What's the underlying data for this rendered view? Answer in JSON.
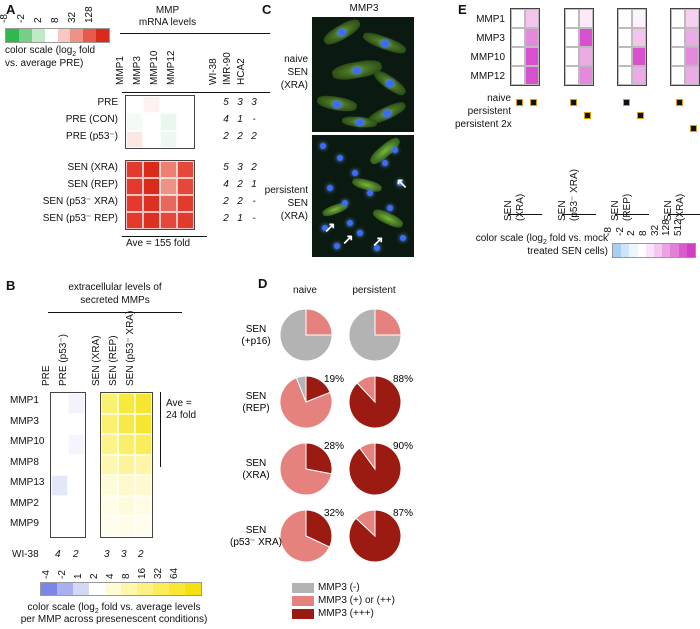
{
  "panels": {
    "A": {
      "letter": "A",
      "scale_ticks": [
        "-8",
        "-2",
        "2",
        "8",
        "32",
        "128"
      ],
      "scale_colors": [
        "#2eb84e",
        "#76cf85",
        "#c0e9c6",
        "#ffffff",
        "#f7c9c2",
        "#ef9286",
        "#e65a4a",
        "#d92a1c"
      ],
      "scale_caption_1": "color scale (log",
      "scale_caption_sub": "2",
      "scale_caption_2": " fold",
      "scale_caption_3": "vs. average PRE)",
      "header_1": "MMP",
      "header_2": "mRNA levels",
      "columns": [
        "MMP1",
        "MMP3",
        "MMP10",
        "MMP12"
      ],
      "cell_columns": [
        "WI-38",
        "IMR-90",
        "HCA2"
      ],
      "pre_rows": [
        {
          "label": "PRE",
          "counts": [
            "5",
            "3",
            "3"
          ],
          "colors": [
            "#ffffff",
            "#fdf2f0",
            "#ffffff",
            "#ffffff"
          ]
        },
        {
          "label": "PRE (CON)",
          "counts": [
            "4",
            "1",
            "-"
          ],
          "colors": [
            "#f4fbf5",
            "#ffffff",
            "#e9f7ec",
            "#ffffff"
          ]
        },
        {
          "label": "PRE (p53⁻)",
          "counts": [
            "2",
            "2",
            "2"
          ],
          "colors": [
            "#fbe8e5",
            "#ffffff",
            "#eef8f0",
            "#ffffff"
          ]
        }
      ],
      "sen_rows": [
        {
          "label": "SEN (XRA)",
          "counts": [
            "5",
            "3",
            "2"
          ],
          "colors": [
            "#e23a2c",
            "#d92a1c",
            "#ee8073",
            "#e5483a"
          ]
        },
        {
          "label": "SEN (REP)",
          "counts": [
            "4",
            "2",
            "1"
          ],
          "colors": [
            "#e23a2c",
            "#d92a1c",
            "#ef9286",
            "#e5483a"
          ]
        },
        {
          "label": "SEN (p53⁻ XRA)",
          "counts": [
            "2",
            "2",
            "-"
          ],
          "colors": [
            "#e23a2c",
            "#dd3022",
            "#e8695b",
            "#e23a2c"
          ]
        },
        {
          "label": "SEN (p53⁻ REP)",
          "counts": [
            "2",
            "1",
            "-"
          ],
          "colors": [
            "#e23a2c",
            "#dd3022",
            "#e5483a",
            "#e23a2c"
          ]
        }
      ],
      "ave_label": "Ave = 155 fold"
    },
    "B": {
      "letter": "B",
      "title_1": "extracellular levels of",
      "title_2": "secreted MMPs",
      "pre_columns": [
        "PRE",
        "PRE (p53⁻)"
      ],
      "sen_columns": [
        "SEN (XRA)",
        "SEN (REP)",
        "SEN (p53⁻ XRA)"
      ],
      "rows": [
        "MMP1",
        "MMP3",
        "MMP10",
        "MMP8",
        "MMP13",
        "MMP2",
        "MMP9"
      ],
      "pre_colors": [
        [
          "#ffffff",
          "#f2f3fd"
        ],
        [
          "#ffffff",
          "#ffffff"
        ],
        [
          "#ffffff",
          "#f5f5fd"
        ],
        [
          "#ffffff",
          "#ffffff"
        ],
        [
          "#e4e7fa",
          "#ffffff"
        ],
        [
          "#ffffff",
          "#ffffff"
        ],
        [
          "#ffffff",
          "#ffffff"
        ]
      ],
      "sen_colors": [
        [
          "#fbf170",
          "#f8ea3c",
          "#f6e631"
        ],
        [
          "#fbf170",
          "#f7e94a",
          "#f6e631"
        ],
        [
          "#fcf38a",
          "#faef6a",
          "#f9ed5c"
        ],
        [
          "#fdf7b0",
          "#fcf49c",
          "#fdf6a8"
        ],
        [
          "#fefbd8",
          "#fef9cc",
          "#fefacf"
        ],
        [
          "#fffde8",
          "#fefbdc",
          "#fefce2"
        ],
        [
          "#fffdee",
          "#fffce8",
          "#fffdee"
        ]
      ],
      "ave_1": "Ave =",
      "ave_2": "24 fold",
      "wi38_label": "WI-38",
      "wi38_counts": [
        "4",
        "2",
        "3",
        "3",
        "2"
      ],
      "scale_ticks": [
        "-4",
        "-2",
        "1",
        "2",
        "4",
        "8",
        "16",
        "32",
        "64"
      ],
      "scale_colors": [
        "#7b86e8",
        "#a9b0ef",
        "#d4d8f7",
        "#ffffff",
        "#fffbd5",
        "#fef6ab",
        "#fdf183",
        "#fbec5a",
        "#f9e635",
        "#f6e010"
      ],
      "caption_1": "color scale (log",
      "caption_sub": "2",
      "caption_2": " fold vs. average levels",
      "caption_3": "per MMP across presenescent conditions)"
    },
    "C": {
      "letter": "C",
      "title": "MMP3",
      "label_top": [
        "naive",
        "SEN",
        "(XRA)"
      ],
      "label_bottom": [
        "persistent",
        "SEN",
        "(XRA)"
      ]
    },
    "D": {
      "letter": "D",
      "col_naive": "naive",
      "col_persistent": "persistent",
      "rows": [
        {
          "label": [
            "SEN",
            "(+p16)"
          ],
          "naive": {
            "neg": 75,
            "pos": 25,
            "high": 0
          },
          "persistent": {
            "neg": 75,
            "pos": 25,
            "high": 0
          },
          "naive_pct": "",
          "persistent_pct": ""
        },
        {
          "label": [
            "SEN",
            "(REP)"
          ],
          "naive": {
            "neg": 6,
            "pos": 75,
            "high": 19
          },
          "persistent": {
            "neg": 0,
            "pos": 12,
            "high": 88
          },
          "naive_pct": "19%",
          "persistent_pct": "88%"
        },
        {
          "label": [
            "SEN",
            "(XRA)"
          ],
          "naive": {
            "neg": 0,
            "pos": 72,
            "high": 28
          },
          "persistent": {
            "neg": 0,
            "pos": 10,
            "high": 90
          },
          "naive_pct": "28%",
          "persistent_pct": "90%"
        },
        {
          "label": [
            "SEN",
            "(p53⁻ XRA)"
          ],
          "naive": {
            "neg": 0,
            "pos": 68,
            "high": 32
          },
          "persistent": {
            "neg": 0,
            "pos": 13,
            "high": 87
          },
          "naive_pct": "32%",
          "persistent_pct": "87%"
        }
      ],
      "colors": {
        "neg": "#b3b3b3",
        "pos": "#e6827d",
        "high": "#9b1a12"
      },
      "legend": [
        "MMP3 (-)",
        "MMP3 (+) or (++)",
        "MMP3 (+++)"
      ]
    },
    "E": {
      "letter": "E",
      "rows": [
        "MMP1",
        "MMP3",
        "MMP10",
        "MMP12"
      ],
      "groups": [
        {
          "label": [
            "SEN",
            "(XRA)"
          ],
          "colors": [
            [
              "#ffffff",
              "#f2c4ee"
            ],
            [
              "#ffffff",
              "#e589df"
            ],
            [
              "#ffffff",
              "#d84fcf"
            ],
            [
              "#ffffff",
              "#d84fcf"
            ]
          ]
        },
        {
          "label": [
            "SEN",
            "(p53⁻ XRA)"
          ],
          "colors": [
            [
              "#ffffff",
              "#fbe8f9"
            ],
            [
              "#ffffff",
              "#d84fcf"
            ],
            [
              "#ffffff",
              "#ecaae6"
            ],
            [
              "#ffffff",
              "#e589df"
            ]
          ]
        },
        {
          "label": [
            "SEN",
            "(REP)"
          ],
          "colors": [
            [
              "#ffffff",
              "#fdf3fc"
            ],
            [
              "#ffffff",
              "#f2c4ee"
            ],
            [
              "#ffffff",
              "#d84fcf"
            ],
            [
              "#ffffff",
              "#ecaae6"
            ]
          ]
        },
        {
          "label": [
            "SEN",
            "(XRA)"
          ],
          "colors": [
            [
              "#ffffff",
              "#f5d0f1"
            ],
            [
              "#ffffff",
              "#ecaae6"
            ],
            [
              "#ffffff",
              "#e589df"
            ],
            [
              "#ffffff",
              "#ecaae6"
            ]
          ]
        }
      ],
      "row_labels": [
        "naive",
        "persistent",
        "persistent 2x"
      ],
      "indicator_rows": [
        0,
        1,
        1,
        2
      ],
      "scale_ticks": [
        "-8",
        "-2",
        "2",
        "8",
        "32",
        "128",
        "512"
      ],
      "scale_colors": [
        "#a7cff4",
        "#cfe4f8",
        "#eef5fc",
        "#ffffff",
        "#fbe4f8",
        "#f5c6f0",
        "#eca3e5",
        "#e280d9",
        "#d95ccd",
        "#d03ec3"
      ],
      "caption_1": "color scale (log",
      "caption_sub": "2",
      "caption_2": " fold vs. mock",
      "caption_3": "treated SEN cells)"
    }
  }
}
